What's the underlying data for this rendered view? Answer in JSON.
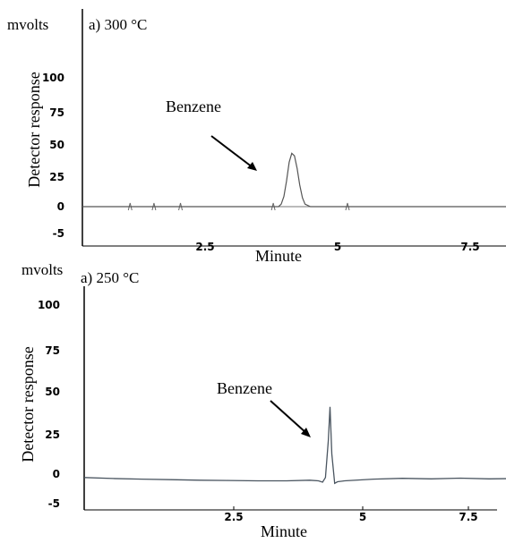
{
  "chart_data": [
    {
      "type": "line",
      "unit_label": "mvolts",
      "title": "a) 300 °C",
      "ylabel": "Detector response",
      "xlabel": "Minute",
      "xlim": [
        0,
        8.3
      ],
      "ylim": [
        -5,
        120
      ],
      "x_ticks": [
        "2.5",
        "5",
        "7.5"
      ],
      "y_ticks": [
        "100",
        "75",
        "50",
        "25",
        "0",
        "-5"
      ],
      "annotation": "Benzene",
      "line_color": "#555555",
      "series": [
        {
          "x": [
            0,
            3.7,
            3.75,
            3.8,
            3.85,
            3.9,
            3.95,
            4.0,
            4.05,
            4.1,
            4.15,
            4.2,
            4.3,
            8.3
          ],
          "values": [
            0,
            0,
            2,
            8,
            20,
            35,
            42,
            40,
            30,
            17,
            7,
            2,
            0,
            0
          ]
        }
      ],
      "peak_markers_x": [
        0.9,
        1.35,
        1.85,
        3.6,
        5.0
      ]
    },
    {
      "type": "line",
      "unit_label": "mvolts",
      "title": "a) 250 °C",
      "ylabel": "Detector response",
      "xlabel": "Minute",
      "xlim": [
        0,
        8.3
      ],
      "ylim": [
        -5,
        120
      ],
      "x_ticks": [
        "2.5",
        "5",
        "7.5"
      ],
      "y_ticks": [
        "100",
        "75",
        "50",
        "25",
        "0",
        "-5"
      ],
      "annotation": "Benzene",
      "line_color": "#4a5560",
      "series": [
        {
          "x": [
            0,
            0.5,
            1.0,
            1.5,
            2.0,
            2.5,
            3.0,
            3.5,
            3.9,
            4.05,
            4.12,
            4.17,
            4.22,
            4.25,
            4.28,
            4.33,
            4.38,
            4.5,
            5.0,
            5.5,
            6.0,
            6.5,
            7.0,
            7.5,
            7.8
          ],
          "values": [
            -2,
            -2.6,
            -3,
            -3.3,
            -3.6,
            -3.8,
            -4,
            -4,
            -3.6,
            -4,
            -4.8,
            -2,
            20,
            40,
            12,
            -5.5,
            -4.5,
            -4,
            -3,
            -2.5,
            -2.8,
            -2.4,
            -2.8,
            -2.6,
            -2.4
          ]
        }
      ]
    }
  ]
}
